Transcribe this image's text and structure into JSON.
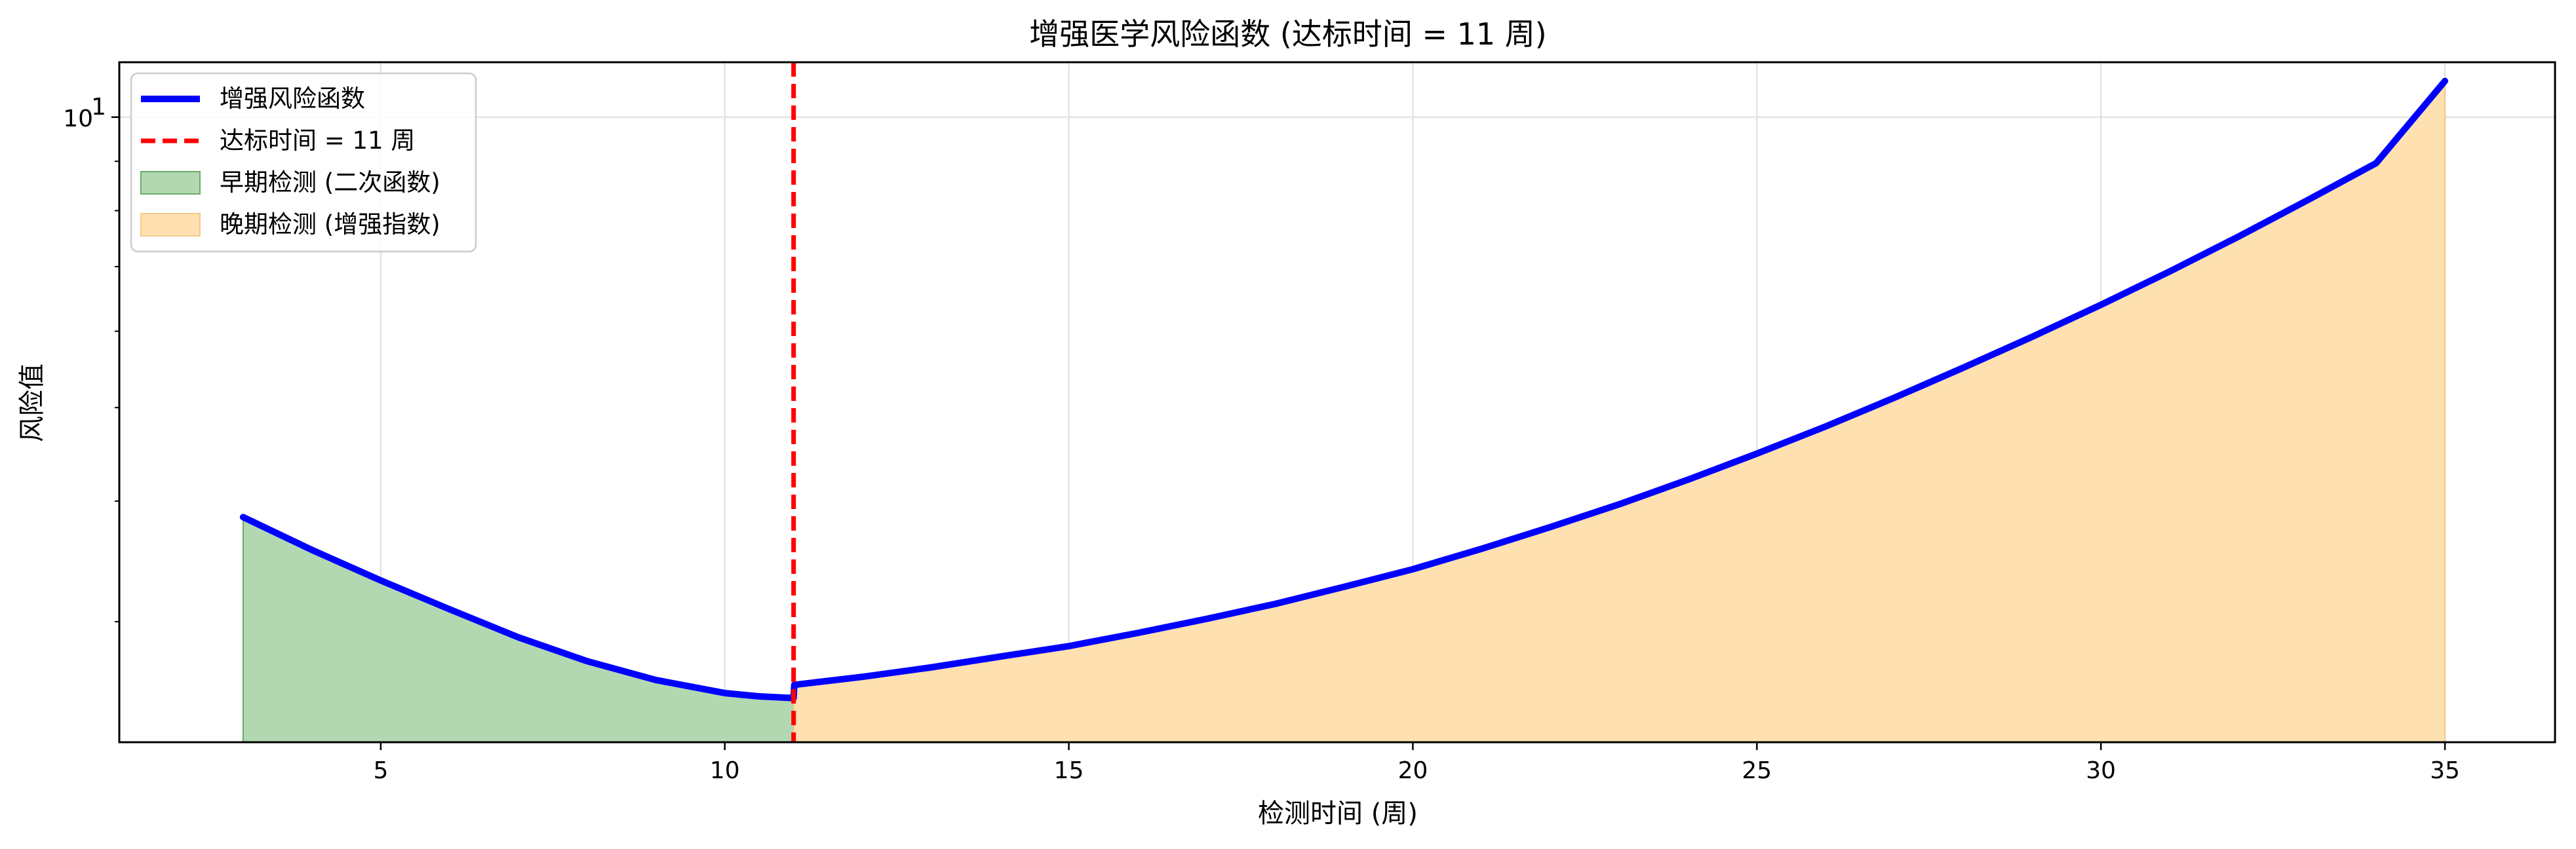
{
  "chart_data": {
    "type": "line",
    "title": "增强医学风险函数 (达标时间 = 11 周)",
    "xlabel": "检测时间 (周)",
    "ylabel": "风险值",
    "xlim": [
      1.2,
      36.6
    ],
    "ylim": [
      2.25,
      11.4
    ],
    "yscale": "log",
    "grid": true,
    "legend_position": "upper-left",
    "x_ticks": [
      5,
      10,
      15,
      20,
      25,
      30,
      35
    ],
    "y_ticks": [
      {
        "value": 10,
        "label_base": "10",
        "label_exp": "1"
      }
    ],
    "y_minor_ticks": [
      3,
      4,
      5,
      6,
      7,
      8,
      9
    ],
    "threshold": {
      "x": 11,
      "label": "达标时间 = 11 周",
      "color": "#ff0000"
    },
    "series": [
      {
        "name": "增强风险函数",
        "color": "#0000ff",
        "x": [
          3,
          4,
          5,
          6,
          7,
          8,
          9,
          10,
          10.5,
          11,
          11.01,
          12,
          13,
          14,
          15,
          16,
          17,
          18,
          19,
          20,
          21,
          22,
          23,
          24,
          25,
          26,
          27,
          28,
          29,
          30,
          31,
          32,
          33,
          34,
          35
        ],
        "y": [
          3.85,
          3.56,
          3.31,
          3.09,
          2.89,
          2.73,
          2.61,
          2.53,
          2.51,
          2.5,
          2.58,
          2.63,
          2.69,
          2.76,
          2.83,
          2.92,
          3.02,
          3.13,
          3.26,
          3.4,
          3.57,
          3.76,
          3.97,
          4.21,
          4.48,
          4.78,
          5.12,
          5.5,
          5.92,
          6.39,
          6.92,
          7.52,
          8.2,
          8.96,
          10.9
        ]
      }
    ],
    "fills": [
      {
        "name": "早期检测 (二次函数)",
        "x_range": [
          3,
          11
        ],
        "color": "#b2d8b2",
        "edge": "#6aab6a"
      },
      {
        "name": "晚期检测 (增强指数)",
        "x_range": [
          11,
          35
        ],
        "color": "#ffe0b0",
        "edge": "#f3c98a"
      }
    ]
  }
}
